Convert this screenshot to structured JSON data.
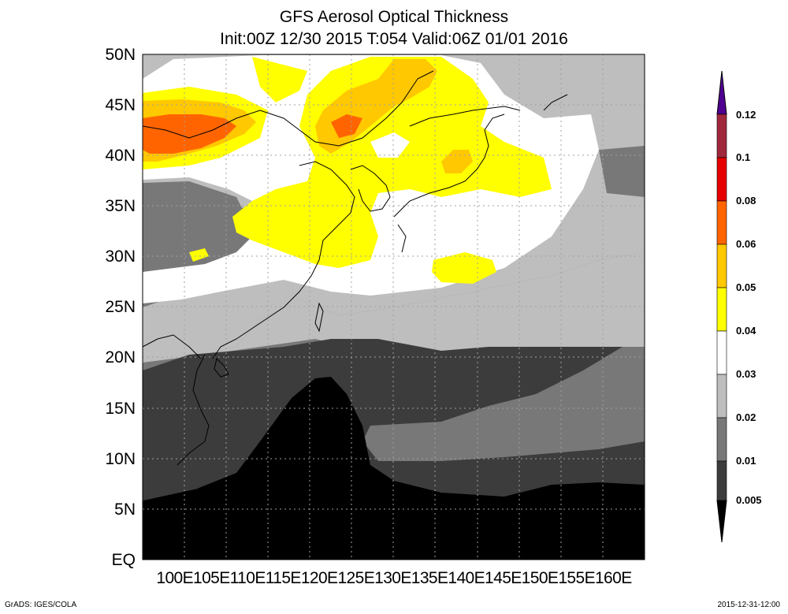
{
  "title": {
    "line1": "GFS Aerosol Optical Thickness",
    "line2": "Init:00Z 12/30 2015 T:054 Valid:06Z 01/01 2016"
  },
  "map": {
    "lat_labels": [
      "50N",
      "45N",
      "40N",
      "35N",
      "30N",
      "25N",
      "20N",
      "15N",
      "10N",
      "5N",
      "EQ"
    ],
    "lat_values": [
      50,
      45,
      40,
      35,
      30,
      25,
      20,
      15,
      10,
      5,
      0
    ],
    "lon_labels": [
      "100E",
      "105E",
      "110E",
      "115E",
      "120E",
      "125E",
      "130E",
      "135E",
      "140E",
      "145E",
      "150E",
      "155E",
      "160E"
    ],
    "lon_values": [
      100,
      105,
      110,
      115,
      120,
      125,
      130,
      135,
      140,
      145,
      150,
      155,
      160
    ],
    "lon_labels_text": "100E105E110E115E120E125E130E135E140E145E150E155E160E",
    "lat_range": [
      0,
      50
    ],
    "lon_range": [
      100,
      160
    ],
    "grid": "dotted"
  },
  "colorbar": {
    "labels": [
      "0.12",
      "0.1",
      "0.08",
      "0.06",
      "0.05",
      "0.04",
      "0.03",
      "0.02",
      "0.01",
      "0.005"
    ],
    "levels": [
      0.005,
      0.01,
      0.02,
      0.03,
      0.04,
      0.05,
      0.06,
      0.08,
      0.1,
      0.12
    ],
    "colors": [
      "#000000",
      "#3c3c3c",
      "#787878",
      "#bebebe",
      "#ffffff",
      "#ffff00",
      "#ffc800",
      "#ff6400",
      "#e60000",
      "#a0283c",
      "#500091"
    ]
  },
  "footer": {
    "credit": "GrADS: IGES/COLA",
    "timestamp": "2015-12-31-12:00"
  }
}
